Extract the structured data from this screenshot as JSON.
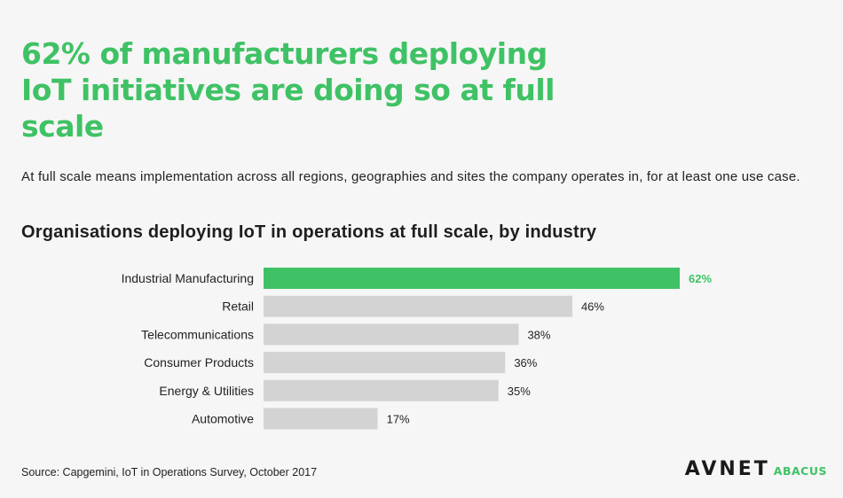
{
  "headline": "62% of manufacturers deploying IoT initiatives are doing so at full scale",
  "subtitle": "At full scale means implementation across all regions, geographies and sites the company operates in, for at least one use case.",
  "source": "Source: Capgemini, IoT in Operations Survey, October 2017",
  "logo": {
    "main": "AVNET",
    "sub": "ABACUS"
  },
  "colors": {
    "highlight": "#3fc265",
    "bar": "#d3d3d3",
    "text": "#222222"
  },
  "chart_data": {
    "type": "bar",
    "orientation": "horizontal",
    "title": "Organisations deploying IoT in operations at full scale, by industry",
    "categories": [
      "Industrial Manufacturing",
      "Retail",
      "Telecommunications",
      "Consumer Products",
      "Energy & Utilities",
      "Automotive"
    ],
    "values": [
      62,
      46,
      38,
      36,
      35,
      17
    ],
    "value_labels": [
      "62%",
      "46%",
      "38%",
      "36%",
      "35%",
      "17%"
    ],
    "highlight_index": 0,
    "xlim": [
      0,
      62
    ],
    "grid": false,
    "legend": "none"
  }
}
